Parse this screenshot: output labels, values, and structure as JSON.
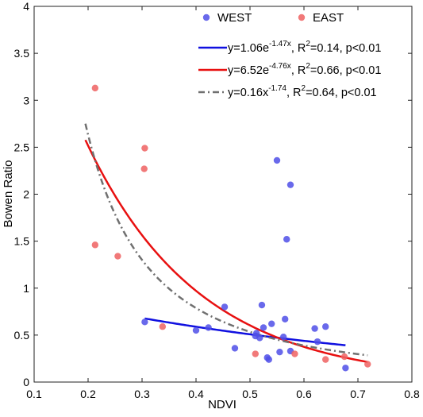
{
  "chart_data": {
    "type": "scatter",
    "xlabel": "NDVI",
    "ylabel": "Bowen Ratio",
    "xlim": [
      0.1,
      0.8
    ],
    "ylim": [
      0,
      4
    ],
    "xticks": [
      "0.1",
      "0.2",
      "0.3",
      "0.4",
      "0.5",
      "0.6",
      "0.7",
      "0.8"
    ],
    "yticks": [
      "0",
      "0.5",
      "1",
      "1.5",
      "2",
      "2.5",
      "3",
      "3.5",
      "4"
    ],
    "grid": false,
    "legend_placement": "top-right",
    "series": [
      {
        "name": "WEST",
        "color": "#4f4fe8",
        "points": [
          [
            0.305,
            0.64
          ],
          [
            0.4,
            0.55
          ],
          [
            0.423,
            0.58
          ],
          [
            0.453,
            0.8
          ],
          [
            0.472,
            0.36
          ],
          [
            0.51,
            0.49
          ],
          [
            0.512,
            0.52
          ],
          [
            0.518,
            0.47
          ],
          [
            0.522,
            0.82
          ],
          [
            0.525,
            0.58
          ],
          [
            0.532,
            0.26
          ],
          [
            0.535,
            0.24
          ],
          [
            0.54,
            0.62
          ],
          [
            0.55,
            2.36
          ],
          [
            0.555,
            0.32
          ],
          [
            0.562,
            0.48
          ],
          [
            0.565,
            0.67
          ],
          [
            0.568,
            1.52
          ],
          [
            0.575,
            2.1
          ],
          [
            0.575,
            0.33
          ],
          [
            0.62,
            0.57
          ],
          [
            0.625,
            0.43
          ],
          [
            0.64,
            0.59
          ],
          [
            0.677,
            0.15
          ]
        ]
      },
      {
        "name": "EAST",
        "color": "#ef6262",
        "points": [
          [
            0.213,
            3.13
          ],
          [
            0.213,
            1.46
          ],
          [
            0.255,
            1.34
          ],
          [
            0.305,
            2.49
          ],
          [
            0.304,
            2.27
          ],
          [
            0.338,
            0.59
          ],
          [
            0.51,
            0.3
          ],
          [
            0.583,
            0.3
          ],
          [
            0.64,
            0.24
          ],
          [
            0.675,
            0.27
          ],
          [
            0.718,
            0.19
          ]
        ]
      }
    ],
    "fits": [
      {
        "series": "WEST",
        "model": "exponential",
        "a": 1.06,
        "b": -1.47,
        "label_main": "y=1.06e",
        "label_exp": "-1.47x",
        "label_rest": ", R",
        "label_r2sup": "2",
        "label_tail": "=0.14, p<0.01",
        "color": "#1010e0",
        "dash": "solid",
        "x_range": [
          0.305,
          0.677
        ]
      },
      {
        "series": "EAST",
        "model": "exponential",
        "a": 6.52,
        "b": -4.76,
        "label_main": "y=6.52e",
        "label_exp": "-4.76x",
        "label_rest": ", R",
        "label_r2sup": "2",
        "label_tail": "=0.66, p<0.01",
        "color": "#e81010",
        "dash": "solid",
        "x_range": [
          0.195,
          0.718
        ]
      },
      {
        "series": "ALL",
        "model": "power",
        "a": 0.16,
        "b": -1.74,
        "label_main": "y=0.16x",
        "label_exp": "-1.74",
        "label_rest": ", R",
        "label_r2sup": "2",
        "label_tail": "=0.64, p<0.01",
        "color": "#707070",
        "dash": "dashdot",
        "x_range": [
          0.195,
          0.718
        ]
      }
    ]
  }
}
